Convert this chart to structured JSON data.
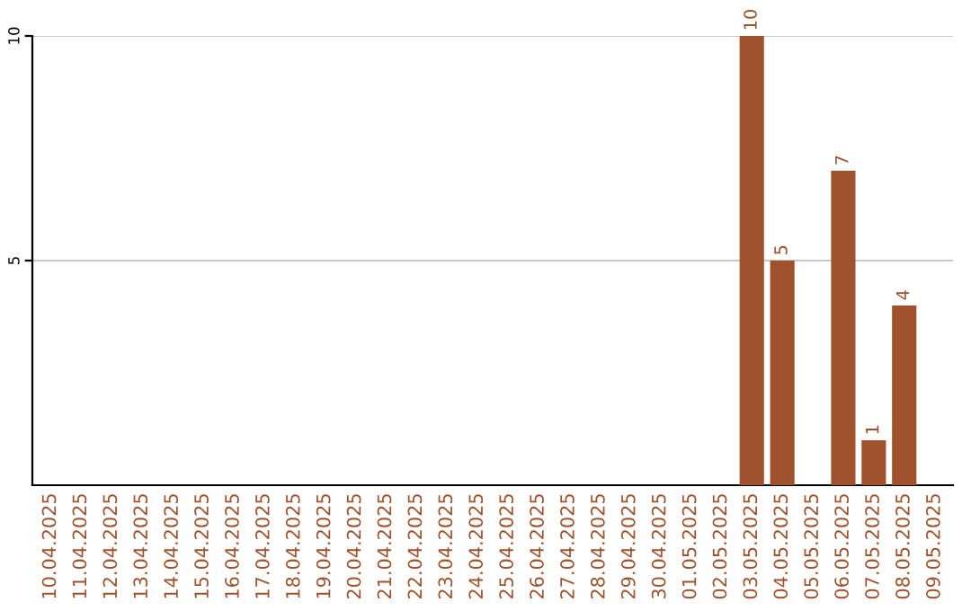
{
  "chart_data": {
    "type": "bar",
    "categories": [
      "10.04.2025",
      "11.04.2025",
      "12.04.2025",
      "13.04.2025",
      "14.04.2025",
      "15.04.2025",
      "16.04.2025",
      "17.04.2025",
      "18.04.2025",
      "19.04.2025",
      "20.04.2025",
      "21.04.2025",
      "22.04.2025",
      "23.04.2025",
      "24.04.2025",
      "25.04.2025",
      "26.04.2025",
      "27.04.2025",
      "28.04.2025",
      "29.04.2025",
      "30.04.2025",
      "01.05.2025",
      "02.05.2025",
      "03.05.2025",
      "04.05.2025",
      "05.05.2025",
      "06.05.2025",
      "07.05.2025",
      "08.05.2025",
      "09.05.2025"
    ],
    "values": [
      0,
      0,
      0,
      0,
      0,
      0,
      0,
      0,
      0,
      0,
      0,
      0,
      0,
      0,
      0,
      0,
      0,
      0,
      0,
      0,
      0,
      0,
      0,
      10,
      5,
      0,
      7,
      1,
      4,
      0
    ],
    "value_labels": [
      null,
      null,
      null,
      null,
      null,
      null,
      null,
      null,
      null,
      null,
      null,
      null,
      null,
      null,
      null,
      null,
      null,
      null,
      null,
      null,
      null,
      null,
      null,
      "10",
      "5",
      null,
      "7",
      "1",
      "4",
      null
    ],
    "color": "#a0522d",
    "ylim": [
      0,
      10
    ],
    "yticks": [
      5,
      10
    ],
    "grid": "y",
    "legend": false
  }
}
